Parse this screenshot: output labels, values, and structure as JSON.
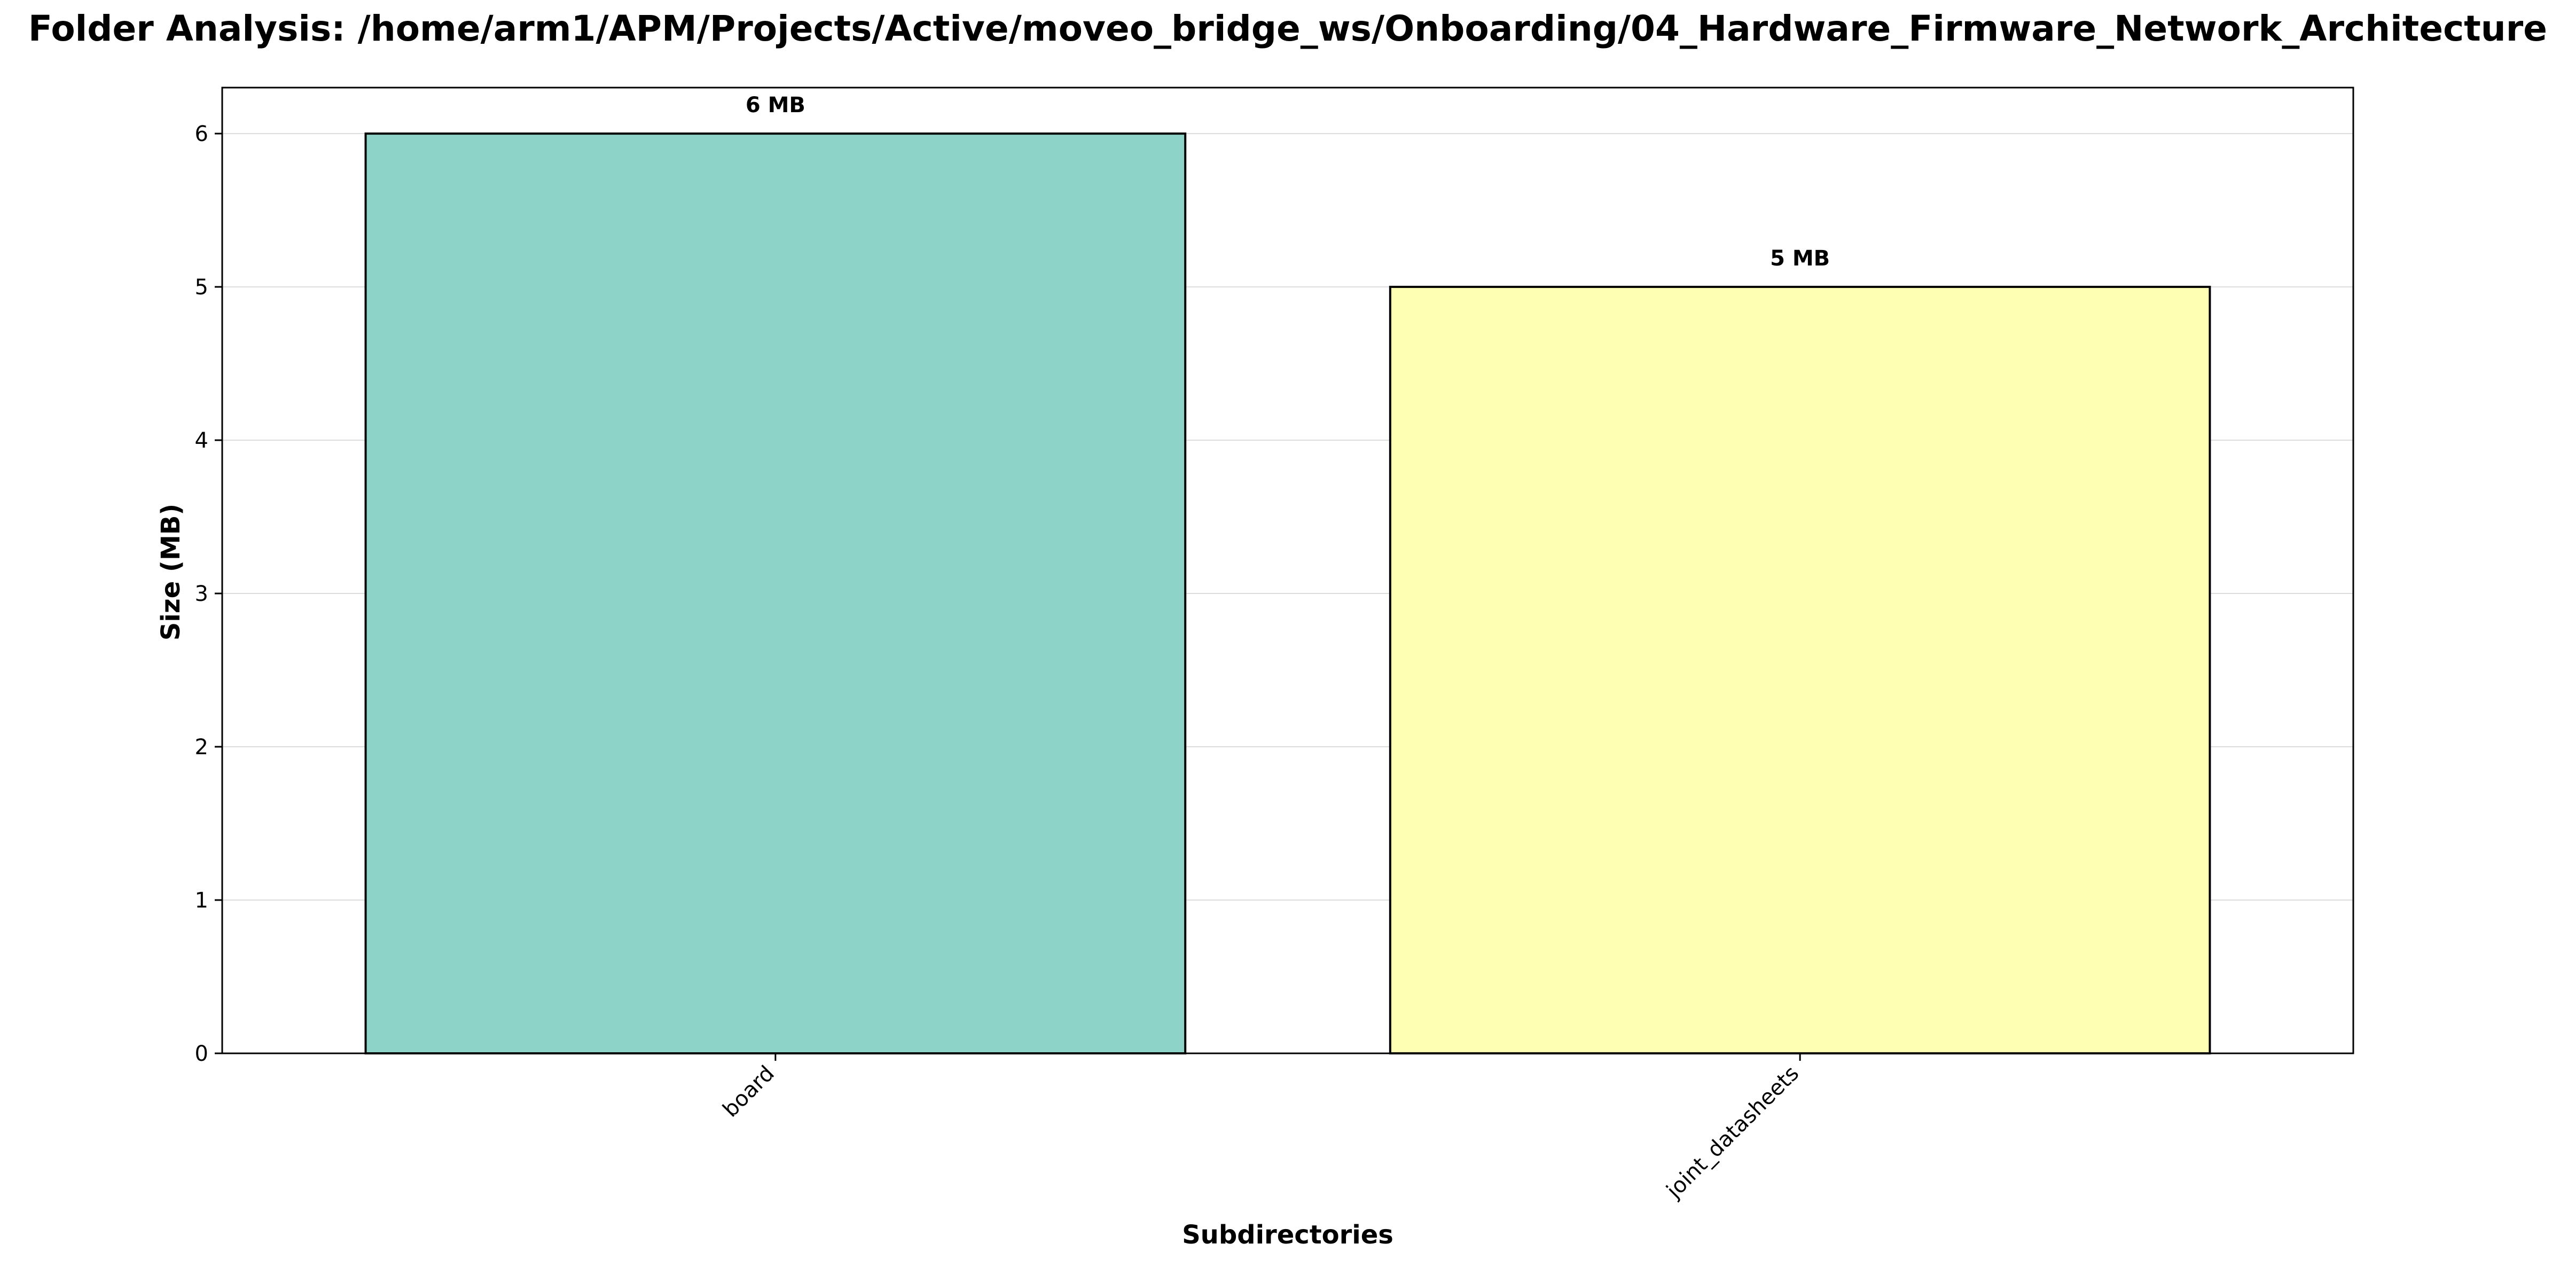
{
  "chart_data": {
    "type": "bar",
    "title": "Folder Analysis: /home/arm1/APM/Projects/Active/moveo_bridge_ws/Onboarding/04_Hardware_Firmware_Network_Architecture",
    "xlabel": "Subdirectories",
    "ylabel": "Size (MB)",
    "categories": [
      "board",
      "joint_datasheets"
    ],
    "values": [
      6,
      5
    ],
    "data_labels": [
      "6 MB",
      "5 MB"
    ],
    "colors": [
      "#8dd3c7",
      "#ffffb3"
    ],
    "ylim": [
      0,
      6.3
    ],
    "yticks": [
      0,
      1,
      2,
      3,
      4,
      5,
      6
    ],
    "ytick_labels": [
      "0",
      "1",
      "2",
      "3",
      "4",
      "5",
      "6"
    ],
    "grid": true,
    "grid_axis": "y",
    "xtick_rotation": "45"
  }
}
